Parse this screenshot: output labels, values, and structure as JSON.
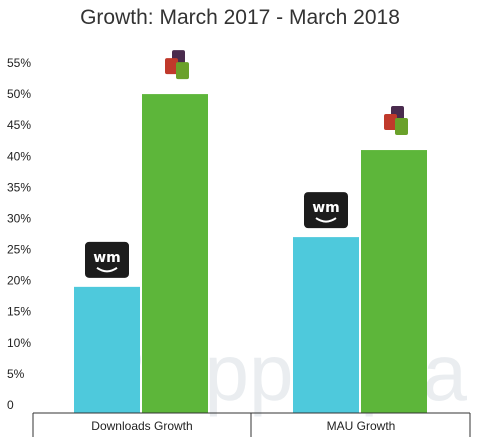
{
  "chart_data": {
    "type": "bar",
    "title": "Growth: March 2017 - March 2018",
    "categories": [
      "Downloads Growth",
      "MAU Growth"
    ],
    "series": [
      {
        "values": [
          19,
          27
        ],
        "color": "#4ec9dc",
        "icon": "wm-app-logo"
      },
      {
        "values": [
          50,
          41
        ],
        "color": "#5db63a",
        "icon": "squares-app-logo"
      }
    ],
    "yticks": [
      "0",
      "5%",
      "10%",
      "15%",
      "20%",
      "25%",
      "30%",
      "35%",
      "40%",
      "45%",
      "50%",
      "55%"
    ],
    "ylim": [
      0,
      56
    ],
    "xlabel": "",
    "ylabel": "",
    "grid": false
  },
  "logos": {
    "wm_text": "wm"
  },
  "watermark": {
    "text": "apptopia"
  }
}
